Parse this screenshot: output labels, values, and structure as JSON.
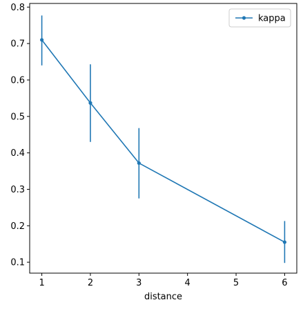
{
  "chart_data": {
    "type": "line",
    "title": "",
    "xlabel": "distance",
    "ylabel": "",
    "x": [
      1,
      2,
      3,
      6
    ],
    "x_tick_labels": [
      "1",
      "2",
      "3",
      "4",
      "5",
      "6"
    ],
    "y_tick_labels": [
      "0.1",
      "0.2",
      "0.3",
      "0.4",
      "0.5",
      "0.6",
      "0.7",
      "0.8"
    ],
    "x_ticks": [
      1,
      2,
      3,
      4,
      5,
      6
    ],
    "y_ticks": [
      0.1,
      0.2,
      0.3,
      0.4,
      0.5,
      0.6,
      0.7,
      0.8
    ],
    "xlim": [
      0.75,
      6.25
    ],
    "ylim": [
      0.07,
      0.81
    ],
    "series": [
      {
        "name": "kappa",
        "color": "#1f77b4",
        "values": [
          0.71,
          0.537,
          0.372,
          0.155
        ],
        "error_low": [
          0.64,
          0.43,
          0.275,
          0.098
        ],
        "error_high": [
          0.777,
          0.643,
          0.468,
          0.213
        ]
      }
    ],
    "legend": {
      "placement": "top-right",
      "entries": [
        "kappa"
      ]
    },
    "grid": false
  }
}
